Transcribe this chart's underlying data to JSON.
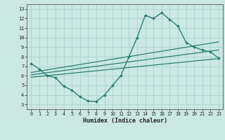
{
  "title": "",
  "xlabel": "Humidex (Indice chaleur)",
  "bg_color": "#cbe8e3",
  "grid_color": "#a8d4cc",
  "line_color": "#2e7d72",
  "xlim": [
    -0.5,
    23.5
  ],
  "ylim": [
    2.5,
    13.5
  ],
  "xticks": [
    0,
    1,
    2,
    3,
    4,
    5,
    6,
    7,
    8,
    9,
    10,
    11,
    12,
    13,
    14,
    15,
    16,
    17,
    18,
    19,
    20,
    21,
    22,
    23
  ],
  "yticks": [
    3,
    4,
    5,
    6,
    7,
    8,
    9,
    10,
    11,
    12,
    13
  ],
  "main_x": [
    0,
    1,
    2,
    3,
    4,
    5,
    6,
    7,
    8,
    9,
    10,
    11,
    12,
    13,
    14,
    15,
    16,
    17,
    18,
    19,
    20,
    21,
    22,
    23
  ],
  "main_y": [
    7.3,
    6.7,
    6.0,
    5.8,
    4.9,
    4.5,
    3.8,
    3.35,
    3.3,
    4.0,
    5.0,
    6.0,
    8.0,
    10.0,
    12.35,
    12.0,
    12.6,
    11.9,
    11.2,
    9.5,
    9.0,
    8.7,
    8.5,
    7.85
  ],
  "trend1_x": [
    0,
    23
  ],
  "trend1_y": [
    6.35,
    9.55
  ],
  "trend2_x": [
    0,
    23
  ],
  "trend2_y": [
    6.1,
    8.7
  ],
  "trend3_x": [
    0,
    23
  ],
  "trend3_y": [
    5.85,
    7.8
  ]
}
